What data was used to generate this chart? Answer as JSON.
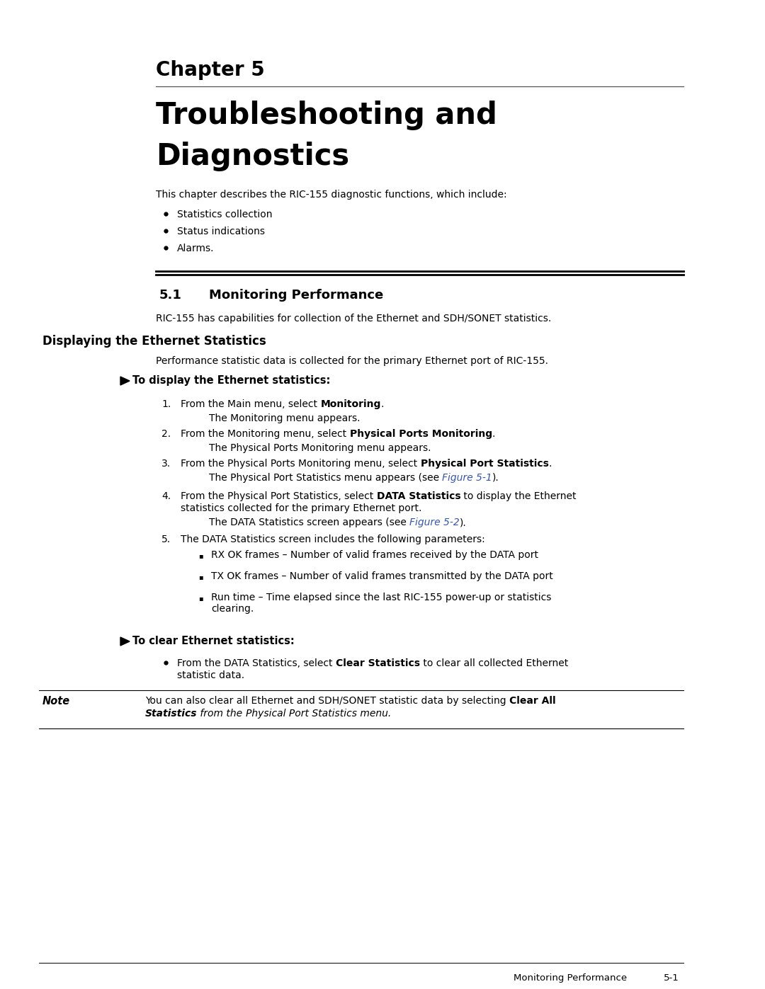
{
  "page_bg": "#ffffff",
  "chapter_label": "Chapter 5",
  "chapter_title_line1": "Troubleshooting and",
  "chapter_title_line2": "Diagnostics",
  "intro_text": "This chapter describes the RIC-155 diagnostic functions, which include:",
  "bullets_intro": [
    "Statistics collection",
    "Status indications",
    "Alarms."
  ],
  "section_number": "5.1",
  "section_title": "Monitoring Performance",
  "section_intro": "RIC-155 has capabilities for collection of the Ethernet and SDH/SONET statistics.",
  "subsection_title": "Displaying the Ethernet Statistics",
  "subsection_intro": "Performance statistic data is collected for the primary Ethernet port of RIC-155.",
  "arrow_label": "To display the Ethernet statistics:",
  "arrow_label2": "To clear Ethernet statistics:",
  "note_label": "Note",
  "footer_left": "Monitoring Performance",
  "footer_right": "5-1",
  "link_color": "#3355BB"
}
